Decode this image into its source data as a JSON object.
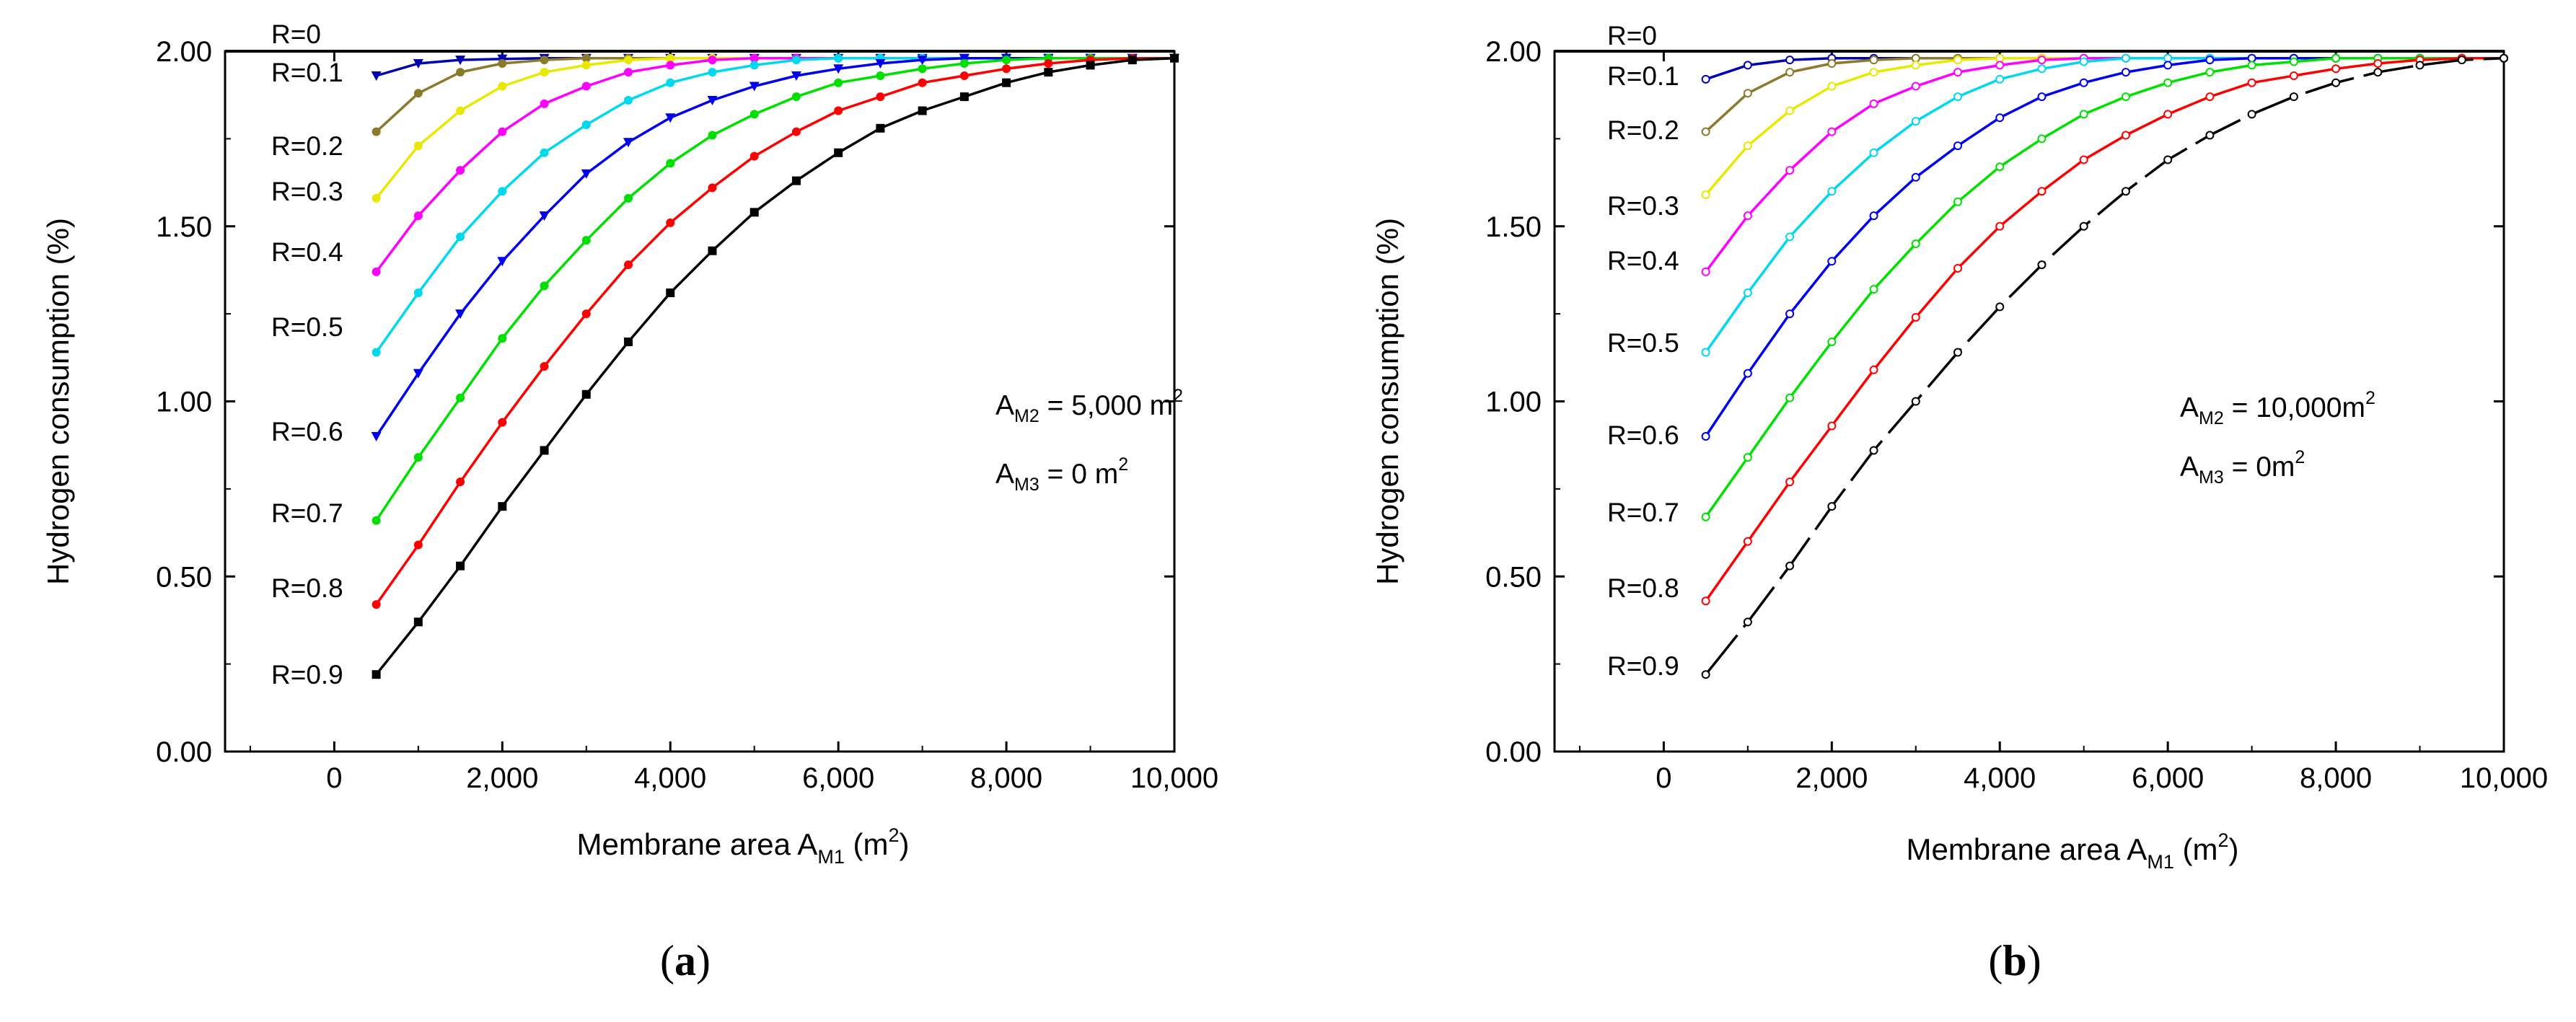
{
  "chart_data": [
    {
      "id": "a",
      "type": "line",
      "panel_label": "a",
      "ylabel": "Hydrogen consumption (%)",
      "xlabel_parts": {
        "main": "Membrane area A",
        "sub": "M1",
        "unit_open": " (m",
        "unit_sup": "2",
        "unit_close": ")"
      },
      "xlim": [
        -1300,
        10000
      ],
      "ylim": [
        0,
        2.0
      ],
      "x_ticks": [
        0,
        2000,
        4000,
        6000,
        8000,
        10000
      ],
      "x_tick_labels": [
        "0",
        "2,000",
        "4,000",
        "6,000",
        "8,000",
        "10,000"
      ],
      "y_ticks": [
        0,
        0.5,
        1.0,
        1.5,
        2.0
      ],
      "y_tick_labels": [
        "0.00",
        "0.50",
        "1.00",
        "1.50",
        "2.00"
      ],
      "marker_style": "filled",
      "annotation": [
        {
          "main": "A",
          "sub": "M2",
          "rest": " = 5,000 m",
          "sup": "2"
        },
        {
          "main": "A",
          "sub": "M3",
          "rest": " = 0 m",
          "sup": "2"
        }
      ],
      "x": [
        500,
        1000,
        1500,
        2000,
        2500,
        3000,
        3500,
        4000,
        4500,
        5000,
        5500,
        6000,
        6500,
        7000,
        7500,
        8000,
        8500,
        9000,
        9500,
        10000
      ],
      "series": [
        {
          "name": "R=0",
          "color": "#000000",
          "line_only": true,
          "values": [
            2.0,
            2.0,
            2.0,
            2.0,
            2.0,
            2.0,
            2.0,
            2.0,
            2.0,
            2.0,
            2.0,
            2.0,
            2.0,
            2.0,
            2.0,
            2.0,
            2.0,
            2.0,
            2.0,
            2.0
          ]
        },
        {
          "name": "R=0.1",
          "color": "#0000b0",
          "values": [
            1.93,
            1.965,
            1.975,
            1.978,
            1.98,
            1.98,
            1.98,
            1.98,
            1.98,
            1.98,
            1.98,
            1.98,
            1.98,
            1.98,
            1.98,
            1.98,
            1.98,
            1.98,
            1.98,
            1.98
          ]
        },
        {
          "name": "R=0.2",
          "color": "#8b7a2b",
          "values": [
            1.77,
            1.88,
            1.94,
            1.965,
            1.975,
            1.98,
            1.98,
            1.98,
            1.98,
            1.98,
            1.98,
            1.98,
            1.98,
            1.98,
            1.98,
            1.98,
            1.98,
            1.98,
            1.98,
            1.98
          ]
        },
        {
          "name": "R=0.3",
          "color": "#e8e800",
          "values": [
            1.58,
            1.73,
            1.83,
            1.9,
            1.94,
            1.96,
            1.975,
            1.98,
            1.98,
            1.98,
            1.98,
            1.98,
            1.98,
            1.98,
            1.98,
            1.98,
            1.98,
            1.98,
            1.98,
            1.98
          ]
        },
        {
          "name": "R=0.4",
          "color": "#ff00ff",
          "values": [
            1.37,
            1.53,
            1.66,
            1.77,
            1.85,
            1.9,
            1.94,
            1.96,
            1.975,
            1.98,
            1.98,
            1.98,
            1.98,
            1.98,
            1.98,
            1.98,
            1.98,
            1.98,
            1.98,
            1.98
          ]
        },
        {
          "name": "R=0.5",
          "color": "#00d8ee",
          "values": [
            1.14,
            1.31,
            1.47,
            1.6,
            1.71,
            1.79,
            1.86,
            1.91,
            1.94,
            1.96,
            1.975,
            1.98,
            1.98,
            1.98,
            1.98,
            1.98,
            1.98,
            1.98,
            1.98,
            1.98
          ]
        },
        {
          "name": "R=0.6",
          "color": "#0000ee",
          "values": [
            0.9,
            1.08,
            1.25,
            1.4,
            1.53,
            1.65,
            1.74,
            1.81,
            1.86,
            1.9,
            1.93,
            1.95,
            1.965,
            1.975,
            1.98,
            1.98,
            1.98,
            1.98,
            1.98,
            1.98
          ]
        },
        {
          "name": "R=0.7",
          "color": "#00e000",
          "values": [
            0.66,
            0.84,
            1.01,
            1.18,
            1.33,
            1.46,
            1.58,
            1.68,
            1.76,
            1.82,
            1.87,
            1.91,
            1.93,
            1.95,
            1.965,
            1.975,
            1.98,
            1.98,
            1.98,
            1.98
          ]
        },
        {
          "name": "R=0.8",
          "color": "#ff0000",
          "values": [
            0.42,
            0.59,
            0.77,
            0.94,
            1.1,
            1.25,
            1.39,
            1.51,
            1.61,
            1.7,
            1.77,
            1.83,
            1.87,
            1.91,
            1.93,
            1.95,
            1.965,
            1.975,
            1.98,
            1.98
          ]
        },
        {
          "name": "R=0.9",
          "color": "#000000",
          "values": [
            0.22,
            0.37,
            0.53,
            0.7,
            0.86,
            1.02,
            1.17,
            1.31,
            1.43,
            1.54,
            1.63,
            1.71,
            1.78,
            1.83,
            1.87,
            1.91,
            1.94,
            1.96,
            1.975,
            1.98
          ]
        }
      ]
    },
    {
      "id": "b",
      "type": "line",
      "panel_label": "b",
      "ylabel": "Hydrogen consumption (%)",
      "xlabel_parts": {
        "main": "Membrane area A",
        "sub": "M1",
        "unit_open": " (m",
        "unit_sup": "2",
        "unit_close": ")"
      },
      "xlim": [
        -1300,
        10000
      ],
      "ylim": [
        0,
        2.0
      ],
      "x_ticks": [
        0,
        2000,
        4000,
        6000,
        8000,
        10000
      ],
      "x_tick_labels": [
        "0",
        "2,000",
        "4,000",
        "6,000",
        "8,000",
        "10,000"
      ],
      "y_ticks": [
        0,
        0.5,
        1.0,
        1.5,
        2.0
      ],
      "y_tick_labels": [
        "0.00",
        "0.50",
        "1.00",
        "1.50",
        "2.00"
      ],
      "marker_style": "open",
      "annotation": [
        {
          "main": "A",
          "sub": "M2",
          "rest": " = 10,000m",
          "sup": "2"
        },
        {
          "main": "A",
          "sub": "M3",
          "rest": " = 0m",
          "sup": "2"
        }
      ],
      "x": [
        500,
        1000,
        1500,
        2000,
        2500,
        3000,
        3500,
        4000,
        4500,
        5000,
        5500,
        6000,
        6500,
        7000,
        7500,
        8000,
        8500,
        9000,
        9500,
        10000
      ],
      "series": [
        {
          "name": "R=0",
          "color": "#000000",
          "line_only": true,
          "values": [
            2.0,
            2.0,
            2.0,
            2.0,
            2.0,
            2.0,
            2.0,
            2.0,
            2.0,
            2.0,
            2.0,
            2.0,
            2.0,
            2.0,
            2.0,
            2.0,
            2.0,
            2.0,
            2.0,
            2.0
          ]
        },
        {
          "name": "R=0.1",
          "color": "#0000b0",
          "values": [
            1.92,
            1.96,
            1.975,
            1.98,
            1.98,
            1.98,
            1.98,
            1.98,
            1.98,
            1.98,
            1.98,
            1.98,
            1.98,
            1.98,
            1.98,
            1.98,
            1.98,
            1.98,
            1.98,
            1.98
          ]
        },
        {
          "name": "R=0.2",
          "color": "#8b7a2b",
          "values": [
            1.77,
            1.88,
            1.94,
            1.965,
            1.975,
            1.98,
            1.98,
            1.98,
            1.98,
            1.98,
            1.98,
            1.98,
            1.98,
            1.98,
            1.98,
            1.98,
            1.98,
            1.98,
            1.98,
            1.98
          ]
        },
        {
          "name": "R=0.3",
          "color": "#e8e800",
          "values": [
            1.59,
            1.73,
            1.83,
            1.9,
            1.94,
            1.96,
            1.975,
            1.98,
            1.98,
            1.98,
            1.98,
            1.98,
            1.98,
            1.98,
            1.98,
            1.98,
            1.98,
            1.98,
            1.98,
            1.98
          ]
        },
        {
          "name": "R=0.4",
          "color": "#ff00ff",
          "values": [
            1.37,
            1.53,
            1.66,
            1.77,
            1.85,
            1.9,
            1.94,
            1.96,
            1.975,
            1.98,
            1.98,
            1.98,
            1.98,
            1.98,
            1.98,
            1.98,
            1.98,
            1.98,
            1.98,
            1.98
          ]
        },
        {
          "name": "R=0.5",
          "color": "#00d8ee",
          "values": [
            1.14,
            1.31,
            1.47,
            1.6,
            1.71,
            1.8,
            1.87,
            1.92,
            1.95,
            1.97,
            1.98,
            1.98,
            1.98,
            1.98,
            1.98,
            1.98,
            1.98,
            1.98,
            1.98,
            1.98
          ]
        },
        {
          "name": "R=0.6",
          "color": "#0000ee",
          "values": [
            0.9,
            1.08,
            1.25,
            1.4,
            1.53,
            1.64,
            1.73,
            1.81,
            1.87,
            1.91,
            1.94,
            1.96,
            1.975,
            1.98,
            1.98,
            1.98,
            1.98,
            1.98,
            1.98,
            1.98
          ]
        },
        {
          "name": "R=0.7",
          "color": "#00e000",
          "values": [
            0.67,
            0.84,
            1.01,
            1.17,
            1.32,
            1.45,
            1.57,
            1.67,
            1.75,
            1.82,
            1.87,
            1.91,
            1.94,
            1.96,
            1.97,
            1.98,
            1.98,
            1.98,
            1.98,
            1.98
          ]
        },
        {
          "name": "R=0.8",
          "color": "#ff0000",
          "values": [
            0.43,
            0.6,
            0.77,
            0.93,
            1.09,
            1.24,
            1.38,
            1.5,
            1.6,
            1.69,
            1.76,
            1.82,
            1.87,
            1.91,
            1.93,
            1.95,
            1.965,
            1.975,
            1.98,
            1.98
          ]
        },
        {
          "name": "R=0.9",
          "color": "#000000",
          "dashed": true,
          "values": [
            0.22,
            0.37,
            0.53,
            0.7,
            0.86,
            1.0,
            1.14,
            1.27,
            1.39,
            1.5,
            1.6,
            1.69,
            1.76,
            1.82,
            1.87,
            1.91,
            1.94,
            1.96,
            1.975,
            1.98
          ]
        }
      ]
    }
  ]
}
